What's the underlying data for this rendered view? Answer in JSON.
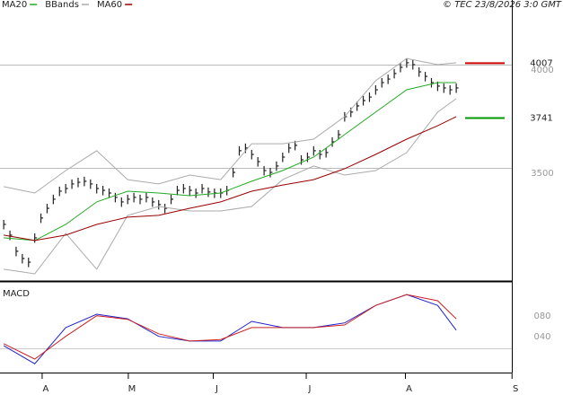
{
  "chart_data": [
    {
      "type": "ohlc",
      "title": "© TEC 23/8/2026 3:0 GMT",
      "x": [
        0,
        1,
        2,
        3,
        4,
        5,
        6,
        7,
        8,
        9,
        10,
        11,
        12,
        13,
        14,
        15,
        16,
        17,
        18,
        19,
        20,
        21,
        22,
        23,
        24,
        25,
        26,
        27,
        28,
        29,
        30,
        31,
        32,
        33,
        34,
        35,
        36,
        37,
        38,
        39,
        40,
        41,
        42,
        43,
        44,
        45,
        46,
        47,
        48,
        49,
        50,
        51,
        52,
        53,
        54,
        55,
        56,
        57,
        58,
        59,
        60,
        61,
        62,
        63,
        64,
        65,
        66,
        67,
        68,
        69,
        70,
        71,
        72,
        73
      ],
      "high": [
        3248,
        3196,
        3118,
        3083,
        3065,
        3183,
        3279,
        3326,
        3370,
        3409,
        3422,
        3444,
        3452,
        3457,
        3444,
        3422,
        3413,
        3400,
        3379,
        3357,
        3370,
        3379,
        3370,
        3379,
        3357,
        3344,
        3326,
        3370,
        3413,
        3422,
        3413,
        3400,
        3422,
        3405,
        3400,
        3400,
        3413,
        3500,
        3605,
        3618,
        3587,
        3552,
        3509,
        3500,
        3531,
        3574,
        3618,
        3631,
        3561,
        3574,
        3605,
        3587,
        3596,
        3648,
        3683,
        3770,
        3792,
        3822,
        3848,
        3865,
        3900,
        3935,
        3952,
        3979,
        4009,
        4031,
        4022,
        3987,
        3965,
        3935,
        3918,
        3909,
        3900,
        3909
      ],
      "low": [
        3202,
        3150,
        3072,
        3037,
        3019,
        3137,
        3233,
        3280,
        3324,
        3363,
        3376,
        3398,
        3406,
        3411,
        3398,
        3376,
        3367,
        3354,
        3333,
        3311,
        3324,
        3333,
        3324,
        3333,
        3311,
        3298,
        3280,
        3324,
        3367,
        3376,
        3367,
        3354,
        3376,
        3359,
        3354,
        3354,
        3367,
        3454,
        3559,
        3572,
        3541,
        3506,
        3463,
        3454,
        3485,
        3528,
        3572,
        3585,
        3515,
        3528,
        3559,
        3541,
        3550,
        3602,
        3637,
        3724,
        3746,
        3776,
        3802,
        3819,
        3854,
        3889,
        3906,
        3933,
        3963,
        3985,
        3976,
        3941,
        3919,
        3889,
        3872,
        3863,
        3854,
        3863
      ],
      "close": [
        3226,
        3174,
        3096,
        3061,
        3043,
        3161,
        3257,
        3304,
        3348,
        3387,
        3400,
        3422,
        3430,
        3435,
        3422,
        3400,
        3391,
        3378,
        3357,
        3335,
        3348,
        3357,
        3348,
        3357,
        3335,
        3322,
        3304,
        3348,
        3391,
        3400,
        3391,
        3378,
        3400,
        3383,
        3378,
        3378,
        3391,
        3478,
        3583,
        3596,
        3565,
        3530,
        3487,
        3478,
        3509,
        3552,
        3596,
        3609,
        3539,
        3552,
        3583,
        3565,
        3574,
        3626,
        3661,
        3748,
        3770,
        3800,
        3826,
        3843,
        3878,
        3913,
        3930,
        3957,
        3987,
        4009,
        4000,
        3965,
        3943,
        3913,
        3896,
        3887,
        3878,
        3887
      ],
      "color": "#222222",
      "series": [
        {
          "name": "MA20",
          "color": "#22aa22",
          "x": [
            0,
            5,
            10,
            15,
            20,
            25,
            30,
            35,
            40,
            45,
            50,
            55,
            60,
            65,
            70,
            73
          ],
          "values": [
            3161,
            3148,
            3226,
            3335,
            3387,
            3378,
            3365,
            3378,
            3435,
            3487,
            3552,
            3661,
            3770,
            3878,
            3913,
            3913
          ]
        },
        {
          "name": "BBands",
          "color": "#aaaaaa",
          "x": [
            0,
            5,
            10,
            15,
            20,
            25,
            30,
            35,
            40,
            45,
            50,
            55,
            60,
            65,
            70,
            73
          ],
          "values": [
            3409,
            3378,
            3487,
            3583,
            3443,
            3422,
            3465,
            3443,
            3617,
            3617,
            3639,
            3748,
            3922,
            4030,
            4000,
            4009
          ],
          "lower": [
            3009,
            2987,
            3183,
            3009,
            3270,
            3313,
            3291,
            3291,
            3313,
            3443,
            3509,
            3465,
            3487,
            3574,
            3770,
            3835
          ]
        },
        {
          "name": "MA60",
          "color": "#990000",
          "x": [
            0,
            5,
            10,
            15,
            20,
            25,
            30,
            35,
            40,
            45,
            50,
            55,
            60,
            65,
            70,
            73
          ],
          "values": [
            3174,
            3148,
            3174,
            3226,
            3261,
            3270,
            3304,
            3335,
            3387,
            3417,
            3443,
            3496,
            3565,
            3639,
            3704,
            3748
          ]
        }
      ],
      "annotations": [
        {
          "value": 4007,
          "color": "#cc0000"
        },
        {
          "value": 3741,
          "color": "#009900"
        }
      ],
      "xlim": [
        -0.6,
        82.4
      ],
      "xticks": [
        {
          "value": 6.2,
          "label": "A"
        },
        {
          "value": 20.1,
          "label": "M"
        },
        {
          "value": 33.8,
          "label": "J"
        },
        {
          "value": 48.8,
          "label": "J"
        },
        {
          "value": 64.8,
          "label": "A"
        },
        {
          "value": 82,
          "label": "S"
        }
      ],
      "ylim": [
        2952,
        4313
      ],
      "yticks": [
        3500,
        4000
      ],
      "grid": true
    },
    {
      "type": "line",
      "title": "MACD",
      "series": [
        {
          "color": "#2222cc",
          "x": [
            0,
            5,
            10,
            15,
            20,
            25,
            30,
            35,
            40,
            45,
            50,
            55,
            60,
            65,
            70,
            73
          ],
          "values": [
            12,
            -23,
            47,
            73,
            64,
            30,
            21,
            21,
            59,
            47,
            47,
            56,
            90,
            111,
            90,
            42
          ]
        },
        {
          "color": "#cc2222",
          "x": [
            0,
            5,
            10,
            15,
            20,
            25,
            30,
            35,
            40,
            45,
            50,
            55,
            60,
            65,
            70,
            73
          ],
          "values": [
            16,
            -14,
            30,
            70,
            63,
            35,
            21,
            24,
            47,
            47,
            47,
            52,
            90,
            111,
            99,
            64
          ]
        }
      ],
      "ylim": [
        -40,
        132
      ],
      "yticks": [
        {
          "value": 40,
          "label": "040"
        },
        {
          "value": 80,
          "label": "080"
        }
      ]
    }
  ]
}
